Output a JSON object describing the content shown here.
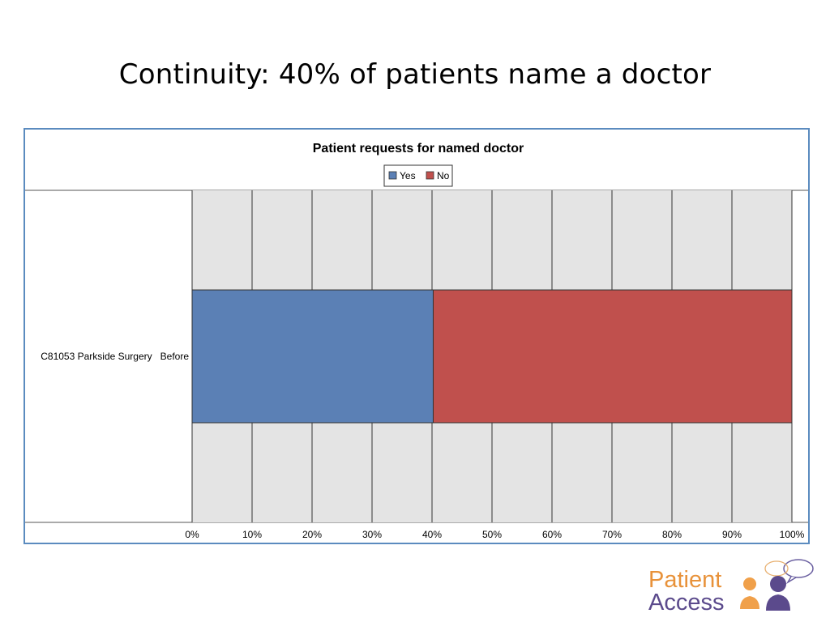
{
  "slide": {
    "title": "Continuity:  40% of patients name a doctor"
  },
  "chart_data": {
    "type": "bar",
    "orientation": "horizontal",
    "stacked": true,
    "title": "Patient requests for named doctor",
    "categories": [
      "C81053 Parkside Surgery   Before"
    ],
    "series": [
      {
        "name": "Yes",
        "values": [
          40.2
        ],
        "color": "#5b80b5"
      },
      {
        "name": "No",
        "values": [
          59.8
        ],
        "color": "#c0504d"
      }
    ],
    "xlim": [
      0,
      100
    ],
    "xticks": [
      "0%",
      "10%",
      "20%",
      "30%",
      "40%",
      "50%",
      "60%",
      "70%",
      "80%",
      "90%",
      "100%"
    ],
    "grid": true,
    "legend_position": "top-center",
    "xlabel": "",
    "ylabel": ""
  },
  "logo": {
    "word1": "Patient",
    "word2": "Access",
    "word1_color": "#e8923a",
    "word2_color": "#5b4a8c"
  }
}
